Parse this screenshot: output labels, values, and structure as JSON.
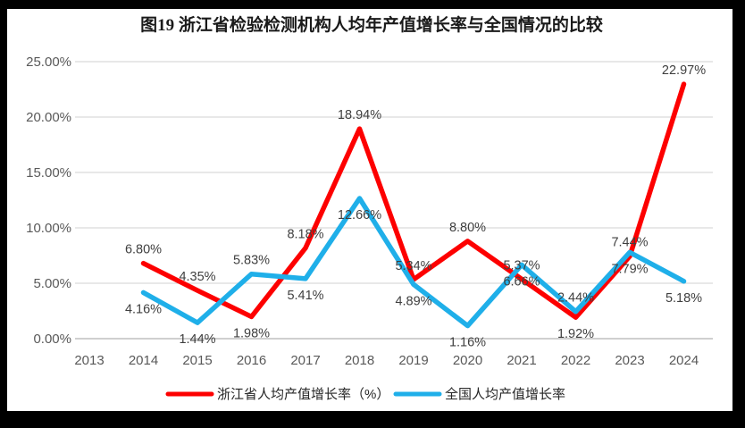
{
  "frame": {
    "outer_background": "#000000",
    "chart_background": "#ffffff",
    "gridline_color": "#d9d9d9",
    "axisline_color": "#bfbfbf"
  },
  "chart_data": {
    "type": "line",
    "title": "图19  浙江省检验检测机构人均年产值增长率与全国情况的比较",
    "categories": [
      "2013",
      "2014",
      "2015",
      "2016",
      "2017",
      "2018",
      "2019",
      "2020",
      "2021",
      "2022",
      "2023",
      "2024"
    ],
    "series": [
      {
        "name": "浙江省人均产值增长率（%）",
        "color": "#fd0000",
        "values": [
          null,
          6.8,
          4.35,
          1.98,
          8.18,
          18.94,
          5.34,
          8.8,
          5.37,
          1.92,
          7.44,
          22.97
        ],
        "labels": [
          "",
          "6.80%",
          "4.35%",
          "1.98%",
          "8.18%",
          "18.94%",
          "5.34%",
          "8.80%",
          "5.37%",
          "1.92%",
          "7.44%",
          "22.97%"
        ],
        "label_side": [
          "",
          "above",
          "above",
          "below",
          "above",
          "above",
          "above",
          "above",
          "above",
          "below",
          "above",
          "above"
        ]
      },
      {
        "name": "全国人均产值增长率",
        "color": "#1fafe9",
        "values": [
          null,
          4.16,
          1.44,
          5.83,
          5.41,
          12.66,
          4.89,
          1.16,
          6.66,
          2.44,
          7.79,
          5.18
        ],
        "labels": [
          "",
          "4.16%",
          "1.44%",
          "5.83%",
          "5.41%",
          "12.66%",
          "4.89%",
          "1.16%",
          "6.66%",
          "2.44%",
          "7.79%",
          "5.18%"
        ],
        "label_side": [
          "",
          "below",
          "below",
          "above",
          "below",
          "below",
          "below",
          "below",
          "below",
          "above",
          "below",
          "below"
        ]
      }
    ],
    "y_ticks": [
      "0.00%",
      "5.00%",
      "10.00%",
      "15.00%",
      "20.00%",
      "25.00%"
    ],
    "ylim": [
      0,
      25
    ],
    "y_tick_step": 5,
    "grid": true,
    "legend_position": "bottom"
  }
}
